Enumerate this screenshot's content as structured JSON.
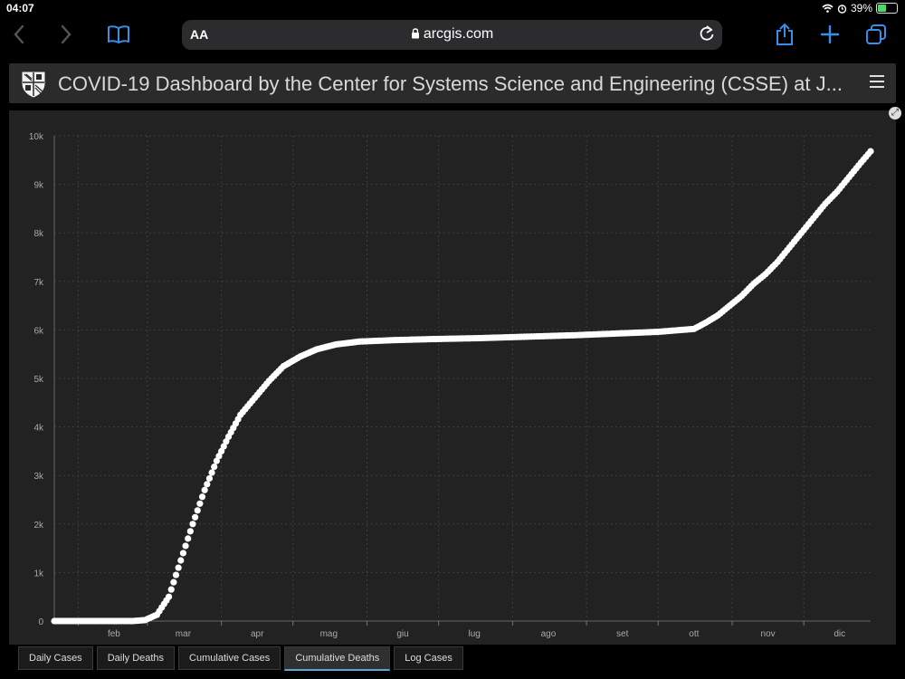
{
  "status_bar": {
    "time": "04:07",
    "battery": "39%"
  },
  "browser": {
    "text_size_button": "AA",
    "url": "arcgis.com"
  },
  "dashboard": {
    "title": "COVID-19 Dashboard by the Center for Systems Science and Engineering (CSSE) at J..."
  },
  "tabs": [
    {
      "label": "Daily Cases",
      "active": false
    },
    {
      "label": "Daily Deaths",
      "active": false
    },
    {
      "label": "Cumulative Cases",
      "active": false
    },
    {
      "label": "Cumulative Deaths",
      "active": true
    },
    {
      "label": "Log Cases",
      "active": false
    }
  ],
  "chart_data": {
    "type": "scatter",
    "x_unit": "day of year (2020)",
    "xlim": [
      22,
      364
    ],
    "ylim": [
      0,
      10000
    ],
    "y_ticks": [
      {
        "value": 0,
        "label": "0"
      },
      {
        "value": 1000,
        "label": "1k"
      },
      {
        "value": 2000,
        "label": "2k"
      },
      {
        "value": 3000,
        "label": "3k"
      },
      {
        "value": 4000,
        "label": "4k"
      },
      {
        "value": 5000,
        "label": "5k"
      },
      {
        "value": 6000,
        "label": "6k"
      },
      {
        "value": 7000,
        "label": "7k"
      },
      {
        "value": 8000,
        "label": "8k"
      },
      {
        "value": 9000,
        "label": "9k"
      },
      {
        "value": 10000,
        "label": "10k"
      }
    ],
    "x_ticks": [
      {
        "day": 32,
        "label": "feb"
      },
      {
        "day": 61,
        "label": "mar"
      },
      {
        "day": 92,
        "label": "apr"
      },
      {
        "day": 122,
        "label": "mag"
      },
      {
        "day": 153,
        "label": "giu"
      },
      {
        "day": 183,
        "label": "lug"
      },
      {
        "day": 214,
        "label": "ago"
      },
      {
        "day": 245,
        "label": "set"
      },
      {
        "day": 275,
        "label": "ott"
      },
      {
        "day": 306,
        "label": "nov"
      },
      {
        "day": 336,
        "label": "dic"
      }
    ],
    "x_labels_offset": 15,
    "grid": true,
    "color": "#ffffff",
    "series_keypoints": [
      [
        22,
        0
      ],
      [
        55,
        0
      ],
      [
        60,
        20
      ],
      [
        65,
        130
      ],
      [
        70,
        500
      ],
      [
        75,
        1250
      ],
      [
        80,
        2000
      ],
      [
        85,
        2700
      ],
      [
        90,
        3300
      ],
      [
        95,
        3800
      ],
      [
        100,
        4250
      ],
      [
        106,
        4600
      ],
      [
        112,
        4950
      ],
      [
        118,
        5250
      ],
      [
        125,
        5450
      ],
      [
        132,
        5600
      ],
      [
        140,
        5700
      ],
      [
        150,
        5760
      ],
      [
        165,
        5790
      ],
      [
        180,
        5810
      ],
      [
        200,
        5830
      ],
      [
        220,
        5860
      ],
      [
        240,
        5890
      ],
      [
        260,
        5930
      ],
      [
        275,
        5960
      ],
      [
        290,
        6020
      ],
      [
        295,
        6150
      ],
      [
        300,
        6300
      ],
      [
        305,
        6500
      ],
      [
        310,
        6700
      ],
      [
        315,
        6950
      ],
      [
        320,
        7150
      ],
      [
        325,
        7400
      ],
      [
        330,
        7700
      ],
      [
        335,
        8000
      ],
      [
        340,
        8300
      ],
      [
        345,
        8600
      ],
      [
        350,
        8850
      ],
      [
        355,
        9150
      ],
      [
        360,
        9450
      ],
      [
        364,
        9680
      ]
    ]
  }
}
